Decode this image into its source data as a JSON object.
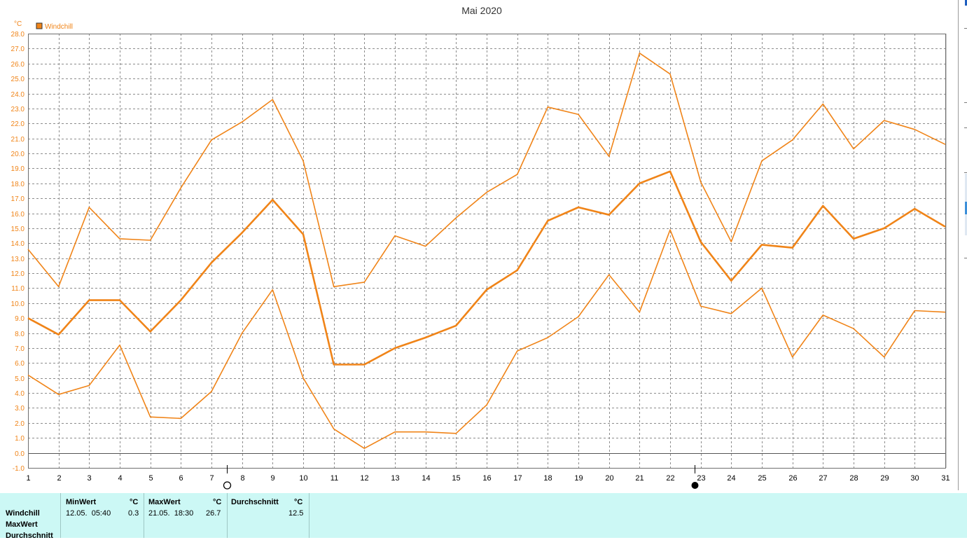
{
  "chart_data": {
    "type": "line",
    "title": "Mai 2020",
    "ylabel": "°C",
    "legend": {
      "position": "top-left",
      "entries": [
        "Windchill"
      ]
    },
    "grid": true,
    "ylim": [
      -1.0,
      28.0
    ],
    "ytick_step": 1.0,
    "x": [
      1,
      2,
      3,
      4,
      5,
      6,
      7,
      8,
      9,
      10,
      11,
      12,
      13,
      14,
      15,
      16,
      17,
      18,
      19,
      20,
      21,
      22,
      23,
      24,
      25,
      26,
      27,
      28,
      29,
      30,
      31
    ],
    "color": "#f08418",
    "series": [
      {
        "name": "",
        "role": "max",
        "values": [
          13.6,
          11.1,
          16.4,
          14.3,
          14.2,
          17.7,
          20.9,
          22.1,
          23.6,
          19.5,
          11.1,
          11.4,
          14.5,
          13.8,
          15.7,
          17.4,
          18.6,
          23.1,
          22.6,
          19.8,
          26.7,
          25.3,
          18.1,
          14.1,
          19.5,
          20.9,
          23.3,
          20.3,
          22.2,
          21.6,
          20.6
        ]
      },
      {
        "name": "",
        "role": "avg",
        "values": [
          9.0,
          7.9,
          10.2,
          10.2,
          8.1,
          10.2,
          12.7,
          14.7,
          16.9,
          14.6,
          5.9,
          5.9,
          7.0,
          7.7,
          8.5,
          10.9,
          12.2,
          15.5,
          16.4,
          15.9,
          18.0,
          18.8,
          14.1,
          11.5,
          13.9,
          13.7,
          16.5,
          14.3,
          15.0,
          16.3,
          15.1
        ]
      },
      {
        "name": "",
        "role": "min",
        "values": [
          5.2,
          3.9,
          4.5,
          7.2,
          2.4,
          2.3,
          4.1,
          8.0,
          10.9,
          5.0,
          1.6,
          0.3,
          1.4,
          1.4,
          1.3,
          3.2,
          6.8,
          7.7,
          9.1,
          11.9,
          9.4,
          14.9,
          9.8,
          9.3,
          11.0,
          6.4,
          9.2,
          8.3,
          6.4,
          9.5,
          9.4
        ]
      }
    ],
    "markers": [
      {
        "symbol": "open-circle",
        "label": "",
        "x": 7.5
      },
      {
        "symbol": "filled-circle",
        "label": "",
        "x": 22.8
      }
    ]
  },
  "stats": {
    "row_labels": [
      "Windchill",
      "MaxWert",
      "Durchschnitt"
    ],
    "min": {
      "header": "MinWert",
      "unit": "°C",
      "datetime": "12.05.  05:40",
      "value": "0.3"
    },
    "max": {
      "header": "MaxWert",
      "unit": "°C",
      "datetime": "21.05.  18:30",
      "value": "26.7"
    },
    "avg": {
      "header": "Durchschnitt",
      "unit": "°C",
      "value": "12.5"
    }
  }
}
